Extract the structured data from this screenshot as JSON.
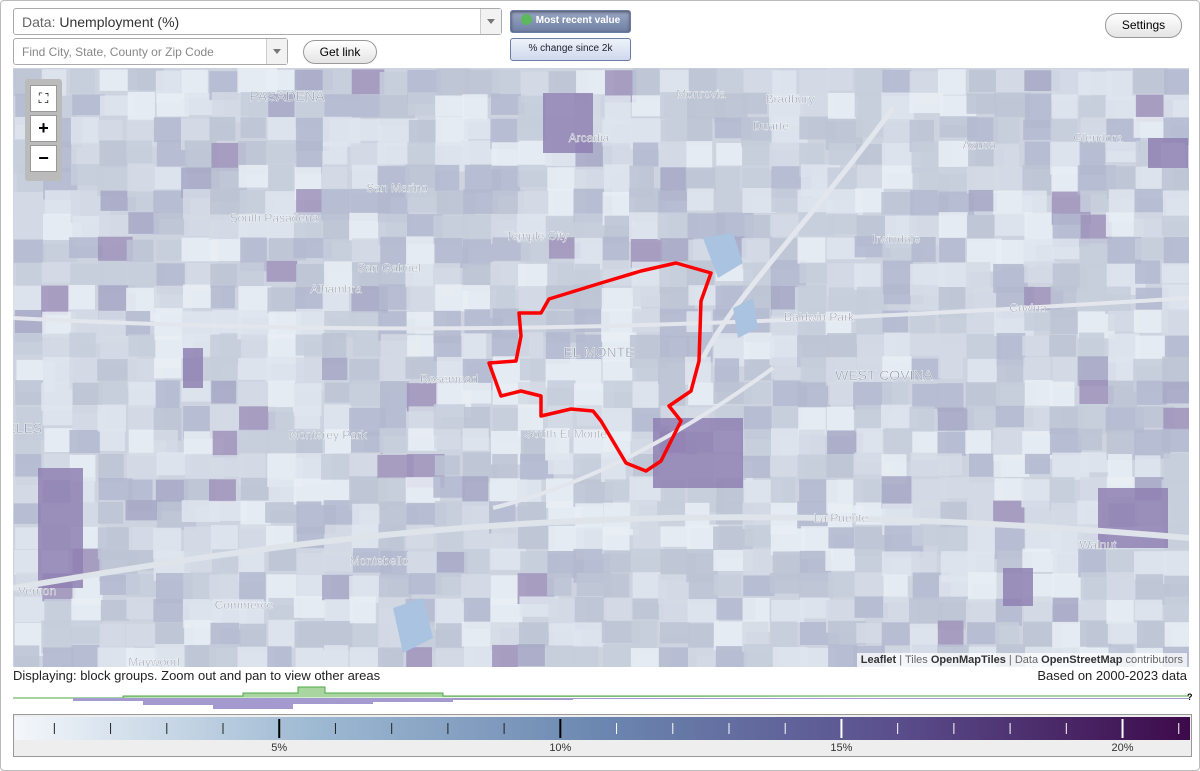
{
  "controls": {
    "data_select_prefix": "Data:",
    "data_select_value": "Unemployment (%)",
    "search_placeholder": "Find City, State, County or Zip Code",
    "get_link": "Get link",
    "mode_recent": "Most recent value",
    "mode_change": "% change since 2k",
    "settings": "Settings"
  },
  "map": {
    "labels": [
      {
        "text": "PASADENA",
        "big": true
      },
      {
        "text": "Monrovia"
      },
      {
        "text": "Bradbury"
      },
      {
        "text": "Duarte"
      },
      {
        "text": "Arcadia"
      },
      {
        "text": "Azusa"
      },
      {
        "text": "Glendora"
      },
      {
        "text": "San Marino"
      },
      {
        "text": "South Pasadena"
      },
      {
        "text": "Temple City"
      },
      {
        "text": "Irwindale"
      },
      {
        "text": "San Gabriel"
      },
      {
        "text": "Alhambra"
      },
      {
        "text": "Baldwin Park"
      },
      {
        "text": "Covina"
      },
      {
        "text": "EL MONTE",
        "big": true
      },
      {
        "text": "WEST COVINA",
        "big": true
      },
      {
        "text": "Rosemead"
      },
      {
        "text": "Monterey Park"
      },
      {
        "text": "South El Monte"
      },
      {
        "text": "La Puente"
      },
      {
        "text": "Walnut"
      },
      {
        "text": "Montebello"
      },
      {
        "text": "Vernon"
      },
      {
        "text": "Commerce"
      },
      {
        "text": "GELES",
        "big": true
      },
      {
        "text": "Maywood"
      }
    ],
    "attribution": {
      "leaflet": "Leaflet",
      "tiles_prefix": "Tiles",
      "tiles": "OpenMapTiles",
      "data_prefix": "Data",
      "data": "OpenStreetMap",
      "contributors": "contributors"
    }
  },
  "status": {
    "displaying": "Displaying: block groups. Zoom out and pan to view other areas",
    "based_on": "Based on 2000-2023 data",
    "help": "?"
  },
  "legend": {
    "range": [
      0.3,
      21.2
    ],
    "minor_ticks": [
      1,
      2,
      3,
      4,
      6,
      7,
      8,
      9,
      11,
      12,
      13,
      14,
      16,
      17,
      18,
      19,
      21
    ],
    "ticks": [
      {
        "value": 5,
        "label": "5%"
      },
      {
        "value": 10,
        "label": "10%"
      },
      {
        "value": 15,
        "label": "15%"
      },
      {
        "value": 20,
        "label": "20%"
      }
    ]
  }
}
